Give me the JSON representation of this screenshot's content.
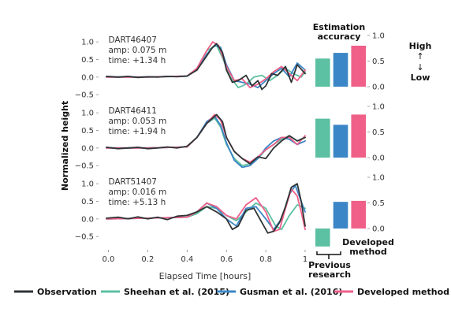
{
  "chart_data": {
    "type": "line",
    "ylabel": "Normalized height",
    "xlabel": "Elapsed Time [hours]",
    "xlim": [
      -0.05,
      1.02
    ],
    "x_ticks": [
      {
        "value": 0.0,
        "label": "0.0"
      },
      {
        "value": 0.2,
        "label": "0.2"
      },
      {
        "value": 0.4,
        "label": "0.4"
      },
      {
        "value": 0.6,
        "label": "0.6"
      },
      {
        "value": 0.8,
        "label": "0.8"
      },
      {
        "value": 1.0,
        "label": "1"
      }
    ],
    "series_styles": [
      {
        "name": "Observation",
        "color": "#2f3436"
      },
      {
        "name": "Sheehan et al. (2015)",
        "color": "#5cc0a2"
      },
      {
        "name": "Gusman et al. (2016)",
        "color": "#3b86c6"
      },
      {
        "name": "Developed method",
        "color": "#ef5f88"
      }
    ],
    "panels": [
      {
        "station": "DART46407",
        "amp": "amp: 0.075 m",
        "time": "time: +1.34 h",
        "ylim": [
          -0.72,
          1.25
        ],
        "yticks": [
          {
            "value": 1.0,
            "label": "1.0"
          },
          {
            "value": 0.5,
            "label": "0.5"
          },
          {
            "value": 0.0,
            "label": "0.0"
          },
          {
            "value": -0.5,
            "label": "−0.5"
          }
        ],
        "curves": [
          {
            "name": "Observation",
            "x": [
              -0.01,
              0.05,
              0.1,
              0.15,
              0.2,
              0.25,
              0.3,
              0.35,
              0.4,
              0.45,
              0.5,
              0.53,
              0.55,
              0.58,
              0.6,
              0.63,
              0.66,
              0.7,
              0.73,
              0.76,
              0.78,
              0.8,
              0.83,
              0.86,
              0.9,
              0.93,
              0.96,
              1.0
            ],
            "y": [
              0.02,
              0.0,
              0.02,
              -0.01,
              0.01,
              0.0,
              0.02,
              0.01,
              0.03,
              0.2,
              0.6,
              0.85,
              0.95,
              0.7,
              0.2,
              -0.15,
              -0.1,
              0.05,
              -0.25,
              -0.1,
              -0.35,
              -0.25,
              0.1,
              0.05,
              0.3,
              -0.15,
              0.35,
              0.1
            ]
          },
          {
            "name": "Sheehan et al. (2015)",
            "x": [
              -0.01,
              0.2,
              0.4,
              0.45,
              0.5,
              0.55,
              0.58,
              0.62,
              0.66,
              0.7,
              0.74,
              0.78,
              0.82,
              0.86,
              0.9,
              0.94,
              0.98,
              1.0
            ],
            "y": [
              0.0,
              0.0,
              0.02,
              0.25,
              0.75,
              0.9,
              0.55,
              0.0,
              -0.3,
              -0.2,
              0.0,
              0.05,
              -0.1,
              0.05,
              0.25,
              0.1,
              0.0,
              0.15
            ]
          },
          {
            "name": "Gusman et al. (2016)",
            "x": [
              -0.01,
              0.2,
              0.4,
              0.45,
              0.5,
              0.54,
              0.57,
              0.6,
              0.64,
              0.68,
              0.72,
              0.76,
              0.8,
              0.84,
              0.88,
              0.92,
              0.96,
              1.0
            ],
            "y": [
              0.0,
              0.0,
              0.03,
              0.2,
              0.65,
              0.9,
              0.85,
              0.35,
              -0.1,
              -0.15,
              -0.2,
              -0.3,
              -0.1,
              0.1,
              0.25,
              0.0,
              0.4,
              0.2
            ]
          },
          {
            "name": "Developed method",
            "x": [
              -0.01,
              0.2,
              0.4,
              0.45,
              0.5,
              0.53,
              0.56,
              0.6,
              0.64,
              0.68,
              0.72,
              0.76,
              0.8,
              0.84,
              0.88,
              0.92,
              0.96,
              1.0
            ],
            "y": [
              0.0,
              0.0,
              0.03,
              0.25,
              0.75,
              1.0,
              0.9,
              0.3,
              -0.1,
              -0.05,
              -0.3,
              -0.2,
              -0.05,
              0.15,
              0.3,
              0.1,
              -0.1,
              0.2
            ]
          }
        ],
        "accuracy": [
          {
            "name": "Sheehan et al. (2015)",
            "value": 0.55
          },
          {
            "name": "Gusman et al. (2016)",
            "value": 0.66
          },
          {
            "name": "Developed method",
            "value": 0.8
          }
        ],
        "acc_ylim": [
          0.0,
          1.0
        ],
        "acc_yticks": [
          {
            "value": 1.0,
            "label": "1.0"
          },
          {
            "value": 0.5,
            "label": "0.5"
          },
          {
            "value": 0.0,
            "label": "0.0"
          }
        ]
      },
      {
        "station": "DART46411",
        "amp": "amp: 0.053 m",
        "time": "time: +1.94 h",
        "ylim": [
          -0.72,
          1.25
        ],
        "yticks": [
          {
            "value": 1.0,
            "label": "1.0"
          },
          {
            "value": 0.5,
            "label": "0.5"
          },
          {
            "value": 0.0,
            "label": "0.0"
          },
          {
            "value": -0.5,
            "label": "−0.5"
          }
        ],
        "curves": [
          {
            "name": "Observation",
            "x": [
              -0.01,
              0.05,
              0.1,
              0.15,
              0.2,
              0.25,
              0.3,
              0.35,
              0.4,
              0.45,
              0.5,
              0.55,
              0.58,
              0.6,
              0.64,
              0.68,
              0.72,
              0.76,
              0.8,
              0.84,
              0.88,
              0.92,
              0.96,
              1.0
            ],
            "y": [
              0.02,
              -0.02,
              0.0,
              0.02,
              -0.02,
              0.0,
              0.03,
              0.0,
              0.05,
              0.3,
              0.7,
              0.95,
              0.75,
              0.3,
              -0.1,
              -0.3,
              -0.45,
              -0.25,
              -0.3,
              0.0,
              0.2,
              0.35,
              0.2,
              0.3
            ]
          },
          {
            "name": "Sheehan et al. (2015)",
            "x": [
              -0.01,
              0.2,
              0.4,
              0.45,
              0.5,
              0.54,
              0.57,
              0.6,
              0.64,
              0.68,
              0.72,
              0.76,
              0.8,
              0.84,
              0.88,
              0.92,
              0.96,
              1.0
            ],
            "y": [
              0.0,
              0.0,
              0.03,
              0.3,
              0.7,
              0.85,
              0.6,
              0.1,
              -0.3,
              -0.5,
              -0.45,
              -0.3,
              -0.05,
              0.1,
              0.25,
              0.35,
              0.2,
              0.3
            ]
          },
          {
            "name": "Gusman et al. (2016)",
            "x": [
              -0.01,
              0.2,
              0.4,
              0.45,
              0.5,
              0.54,
              0.57,
              0.6,
              0.64,
              0.68,
              0.72,
              0.76,
              0.8,
              0.84,
              0.88,
              0.92,
              0.96,
              1.0
            ],
            "y": [
              0.0,
              0.0,
              0.03,
              0.3,
              0.75,
              0.9,
              0.65,
              0.15,
              -0.35,
              -0.55,
              -0.5,
              -0.3,
              0.0,
              0.2,
              0.3,
              0.25,
              0.1,
              0.2
            ]
          },
          {
            "name": "Developed method",
            "x": [
              -0.01,
              0.2,
              0.4,
              0.45,
              0.5,
              0.54,
              0.57,
              0.6,
              0.64,
              0.68,
              0.72,
              0.76,
              0.8,
              0.84,
              0.88,
              0.92,
              0.96,
              1.0
            ],
            "y": [
              0.0,
              0.0,
              0.03,
              0.3,
              0.7,
              0.95,
              0.8,
              0.3,
              -0.1,
              -0.3,
              -0.4,
              -0.25,
              -0.05,
              0.1,
              0.3,
              0.3,
              0.1,
              0.35
            ]
          }
        ],
        "accuracy": [
          {
            "name": "Sheehan et al. (2015)",
            "value": 0.76
          },
          {
            "name": "Gusman et al. (2016)",
            "value": 0.64
          },
          {
            "name": "Developed method",
            "value": 0.84
          }
        ],
        "acc_ylim": [
          0.0,
          1.0
        ],
        "acc_yticks": [
          {
            "value": 1.0,
            "label": "1.0"
          },
          {
            "value": 0.5,
            "label": "0.5"
          },
          {
            "value": 0.0,
            "label": "0.0"
          }
        ]
      },
      {
        "station": "DART51407",
        "amp": "amp: 0.016 m",
        "time": "time: +5.13 h",
        "ylim": [
          -0.72,
          1.25
        ],
        "yticks": [
          {
            "value": 1.0,
            "label": "1.0"
          },
          {
            "value": 0.5,
            "label": "0.5"
          },
          {
            "value": 0.0,
            "label": "0.0"
          },
          {
            "value": -0.5,
            "label": "−0.5"
          }
        ],
        "curves": [
          {
            "name": "Observation",
            "x": [
              -0.01,
              0.05,
              0.1,
              0.15,
              0.2,
              0.25,
              0.3,
              0.35,
              0.4,
              0.45,
              0.5,
              0.55,
              0.6,
              0.63,
              0.66,
              0.7,
              0.74,
              0.78,
              0.81,
              0.84,
              0.87,
              0.9,
              0.93,
              0.96,
              0.98,
              1.0
            ],
            "y": [
              0.02,
              0.05,
              0.0,
              0.06,
              0.0,
              0.05,
              -0.02,
              0.08,
              0.1,
              0.2,
              0.35,
              0.2,
              0.0,
              -0.3,
              -0.2,
              0.25,
              0.3,
              -0.1,
              -0.4,
              -0.35,
              -0.1,
              0.35,
              0.9,
              1.0,
              0.5,
              -0.2
            ]
          },
          {
            "name": "Sheehan et al. (2015)",
            "x": [
              -0.01,
              0.2,
              0.4,
              0.45,
              0.5,
              0.55,
              0.6,
              0.65,
              0.7,
              0.75,
              0.8,
              0.85,
              0.88,
              0.92,
              0.96,
              1.0
            ],
            "y": [
              0.0,
              0.02,
              0.05,
              0.15,
              0.35,
              0.3,
              0.1,
              -0.05,
              0.2,
              0.45,
              0.3,
              -0.2,
              -0.3,
              0.1,
              0.4,
              0.3
            ]
          },
          {
            "name": "Gusman et al. (2016)",
            "x": [
              -0.01,
              0.2,
              0.4,
              0.45,
              0.5,
              0.55,
              0.6,
              0.65,
              0.7,
              0.75,
              0.8,
              0.84,
              0.88,
              0.92,
              0.95,
              0.98,
              1.0
            ],
            "y": [
              0.0,
              0.02,
              0.05,
              0.2,
              0.45,
              0.3,
              0.0,
              -0.2,
              0.3,
              0.35,
              0.0,
              -0.3,
              0.0,
              0.7,
              0.95,
              0.5,
              0.2
            ]
          },
          {
            "name": "Developed method",
            "x": [
              -0.01,
              0.2,
              0.4,
              0.45,
              0.5,
              0.55,
              0.6,
              0.65,
              0.7,
              0.75,
              0.8,
              0.84,
              0.87,
              0.9,
              0.93,
              0.96,
              0.98,
              1.0
            ],
            "y": [
              0.0,
              0.02,
              0.05,
              0.2,
              0.45,
              0.35,
              0.1,
              0.0,
              0.4,
              0.6,
              0.2,
              -0.35,
              -0.3,
              0.3,
              0.85,
              0.65,
              0.2,
              -0.3
            ]
          }
        ],
        "accuracy": [
          {
            "name": "Sheehan et al. (2015)",
            "value": -0.35
          },
          {
            "name": "Gusman et al. (2016)",
            "value": 0.52
          },
          {
            "name": "Developed method",
            "value": 0.54
          }
        ],
        "acc_ylim": [
          -0.5,
          1.0
        ],
        "acc_yticks": [
          {
            "value": 1.0,
            "label": "1.0"
          },
          {
            "value": 0.5,
            "label": "0.5"
          },
          {
            "value": 0.0,
            "label": "0.0"
          }
        ]
      }
    ],
    "accuracy_title_line1": "Estimation",
    "accuracy_title_line2": "accuracy",
    "high_label": "High",
    "low_label": "Low",
    "arrow_up": "↑",
    "arrow_down": "↓",
    "previous_line1": "Previous",
    "previous_line2": "research",
    "developed_line1": "Developed",
    "developed_line2": "method",
    "legend": [
      {
        "label": "Observation",
        "color": "#2f3436"
      },
      {
        "label": "Sheehan et al. (2015)",
        "color": "#5cc0a2"
      },
      {
        "label": "Gusman et al. (2016)",
        "color": "#3b86c6"
      },
      {
        "label": "Developed method",
        "color": "#ef5f88"
      }
    ]
  }
}
